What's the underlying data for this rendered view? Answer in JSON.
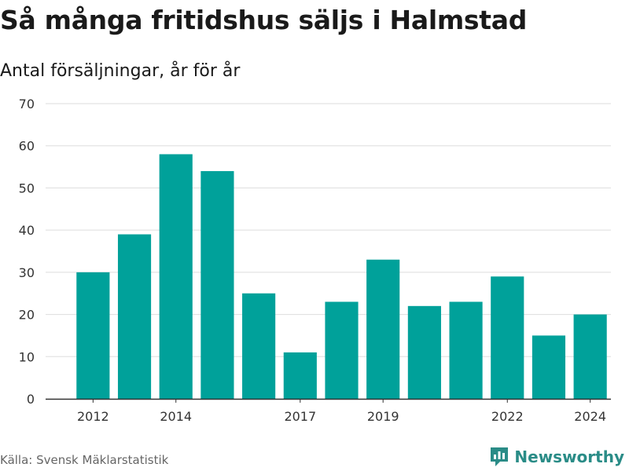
{
  "header": {
    "title": "Så många fritidshus säljs i Halmstad",
    "subtitle": "Antal försäljningar, år för år"
  },
  "footer": {
    "source": "Källa: Svensk Mäklarstatistik",
    "brand": "Newsworthy",
    "brand_icon": "newsworthy-logo-icon"
  },
  "colors": {
    "bar": "#00a19a",
    "grid": "#dddddd",
    "axis": "#333333",
    "brand": "#2a8c87"
  },
  "chart_data": {
    "type": "bar",
    "categories": [
      "2012",
      "2013",
      "2014",
      "2015",
      "2016",
      "2017",
      "2018",
      "2019",
      "2020",
      "2021",
      "2022",
      "2023",
      "2024"
    ],
    "values": [
      30,
      39,
      58,
      54,
      25,
      11,
      23,
      33,
      22,
      23,
      29,
      15,
      20
    ],
    "x_tick_labels": [
      "2012",
      "2014",
      "2017",
      "2019",
      "2022",
      "2024"
    ],
    "y_ticks": [
      0,
      10,
      20,
      30,
      40,
      50,
      60,
      70
    ],
    "ylim": [
      0,
      70
    ],
    "grid": true,
    "legend": "none"
  }
}
